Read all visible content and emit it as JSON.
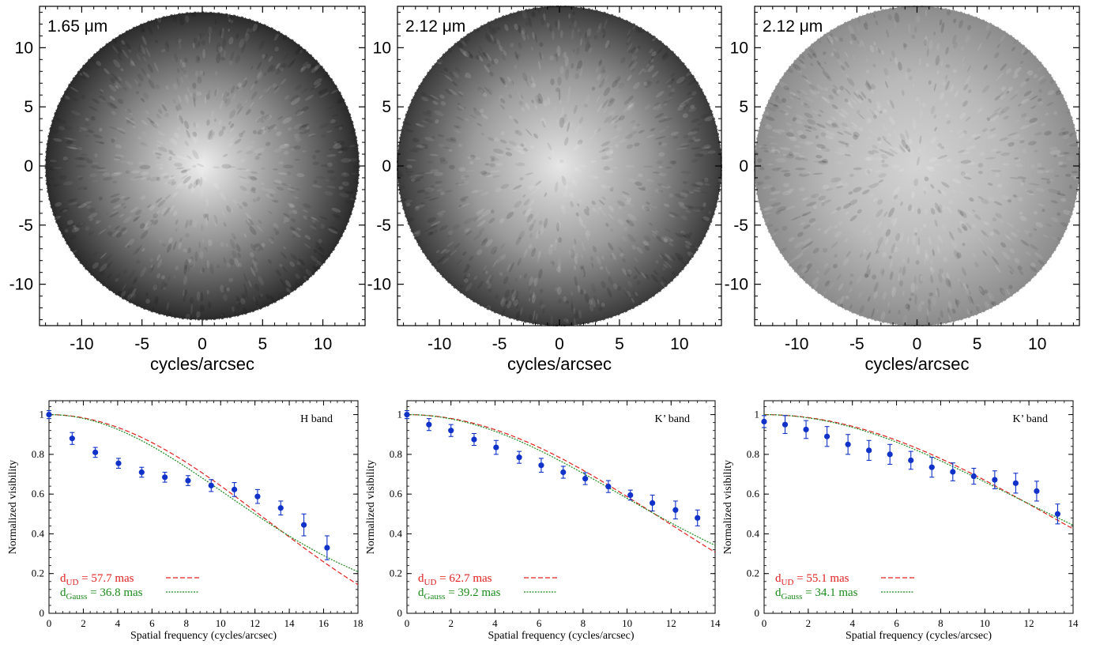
{
  "chart_data": [
    {
      "type": "heatmap",
      "panel": "top-left",
      "annotation": "1.65 μm",
      "xlabel": "cycles/arcsec",
      "ylabel": "",
      "xlim": [
        -13.5,
        13.5
      ],
      "ylim": [
        -13.5,
        13.5
      ],
      "xticks": [
        -10,
        -5,
        0,
        5,
        10
      ],
      "yticks": [
        10,
        5,
        0,
        -5,
        -10
      ],
      "colormap": "grayscale",
      "disk_radius": 13,
      "edge_shade": "#2b2b2b",
      "mid_shade": "#8a8a8a",
      "center_shade": "#eeeeee"
    },
    {
      "type": "heatmap",
      "panel": "top-middle",
      "annotation": "2.12 μm",
      "xlabel": "cycles/arcsec",
      "ylabel": "",
      "xlim": [
        -13.5,
        13.5
      ],
      "ylim": [
        -13.5,
        13.5
      ],
      "xticks": [
        -10,
        -5,
        0,
        5,
        10
      ],
      "yticks": [
        10,
        5,
        0,
        -5,
        -10
      ],
      "colormap": "grayscale",
      "disk_radius": 13.5,
      "edge_shade": "#3a3a3a",
      "mid_shade": "#9b9b9b",
      "center_shade": "#e6e6e6"
    },
    {
      "type": "heatmap",
      "panel": "top-right",
      "annotation": "2.12 μm",
      "xlabel": "cycles/arcsec",
      "ylabel": "",
      "xlim": [
        -13.5,
        13.5
      ],
      "ylim": [
        -13.5,
        13.5
      ],
      "xticks": [
        -10,
        -5,
        0,
        5,
        10
      ],
      "yticks": [
        10,
        5,
        0,
        -5,
        -10
      ],
      "colormap": "grayscale",
      "disk_radius": 13.5,
      "edge_shade": "#8c8c8c",
      "mid_shade": "#b9b9b9",
      "center_shade": "#d4d4d4"
    },
    {
      "type": "scatter",
      "panel": "bottom-left",
      "band_label": "H band",
      "xlabel": "Spatial frequency (cycles/arcsec)",
      "ylabel": "Normalized visibility",
      "xlim": [
        0,
        18
      ],
      "ylim": [
        0,
        1.07
      ],
      "xticks": [
        0,
        2,
        4,
        6,
        8,
        10,
        12,
        14,
        16,
        18
      ],
      "yticks": [
        0,
        0.2,
        0.4,
        0.6,
        0.8,
        1
      ],
      "series": [
        {
          "name": "data",
          "color": "#1032c8",
          "points": [
            {
              "x": 0,
              "y": 1.0,
              "err": 0.02
            },
            {
              "x": 1.35,
              "y": 0.88,
              "err": 0.03
            },
            {
              "x": 2.7,
              "y": 0.81,
              "err": 0.025
            },
            {
              "x": 4.05,
              "y": 0.755,
              "err": 0.025
            },
            {
              "x": 5.4,
              "y": 0.71,
              "err": 0.025
            },
            {
              "x": 6.75,
              "y": 0.685,
              "err": 0.025
            },
            {
              "x": 8.1,
              "y": 0.668,
              "err": 0.025
            },
            {
              "x": 9.45,
              "y": 0.643,
              "err": 0.03
            },
            {
              "x": 10.8,
              "y": 0.623,
              "err": 0.035
            },
            {
              "x": 12.15,
              "y": 0.588,
              "err": 0.035
            },
            {
              "x": 13.5,
              "y": 0.53,
              "err": 0.035
            },
            {
              "x": 14.85,
              "y": 0.445,
              "err": 0.055
            },
            {
              "x": 16.2,
              "y": 0.33,
              "err": 0.06
            }
          ]
        }
      ],
      "models": [
        {
          "name": "d_UD",
          "sub": "UD",
          "label_value": " = 57.7 mas",
          "kind": "uniform_disk",
          "diameter_mas": 57.7,
          "color": "#e02020",
          "dash": "dashed"
        },
        {
          "name": "d_Gauss",
          "sub": "Gauss",
          "label_value": " = 36.8 mas",
          "kind": "gaussian",
          "diameter_mas": 36.8,
          "color": "#1a8a1a",
          "dash": "dotted"
        }
      ]
    },
    {
      "type": "scatter",
      "panel": "bottom-middle",
      "band_label": "K’ band",
      "xlabel": "Spatial frequency (cycles/arcsec)",
      "ylabel": "Normalized visibility",
      "xlim": [
        0,
        14
      ],
      "ylim": [
        0,
        1.07
      ],
      "xticks": [
        0,
        2,
        4,
        6,
        8,
        10,
        12,
        14
      ],
      "yticks": [
        0,
        0.2,
        0.4,
        0.6,
        0.8,
        1
      ],
      "series": [
        {
          "name": "data",
          "color": "#1032c8",
          "points": [
            {
              "x": 0,
              "y": 1.0,
              "err": 0.02
            },
            {
              "x": 1.0,
              "y": 0.95,
              "err": 0.03
            },
            {
              "x": 2.0,
              "y": 0.92,
              "err": 0.03
            },
            {
              "x": 3.05,
              "y": 0.875,
              "err": 0.03
            },
            {
              "x": 4.05,
              "y": 0.835,
              "err": 0.035
            },
            {
              "x": 5.1,
              "y": 0.785,
              "err": 0.03
            },
            {
              "x": 6.1,
              "y": 0.745,
              "err": 0.035
            },
            {
              "x": 7.1,
              "y": 0.71,
              "err": 0.03
            },
            {
              "x": 8.1,
              "y": 0.678,
              "err": 0.03
            },
            {
              "x": 9.15,
              "y": 0.638,
              "err": 0.03
            },
            {
              "x": 10.15,
              "y": 0.595,
              "err": 0.025
            },
            {
              "x": 11.15,
              "y": 0.555,
              "err": 0.04
            },
            {
              "x": 12.2,
              "y": 0.52,
              "err": 0.045
            },
            {
              "x": 13.2,
              "y": 0.48,
              "err": 0.04
            }
          ]
        }
      ],
      "models": [
        {
          "name": "d_UD",
          "sub": "UD",
          "label_value": " = 62.7 mas",
          "kind": "uniform_disk",
          "diameter_mas": 62.7,
          "color": "#e02020",
          "dash": "dashed"
        },
        {
          "name": "d_Gauss",
          "sub": "Gauss",
          "label_value": " = 39.2 mas",
          "kind": "gaussian",
          "diameter_mas": 39.2,
          "color": "#1a8a1a",
          "dash": "dotted"
        }
      ]
    },
    {
      "type": "scatter",
      "panel": "bottom-right",
      "band_label": "K’ band",
      "xlabel": "Spatial frequency (cycles/arcsec)",
      "ylabel": "Normalized visibility",
      "xlim": [
        0,
        14
      ],
      "ylim": [
        0,
        1.07
      ],
      "xticks": [
        0,
        2,
        4,
        6,
        8,
        10,
        12,
        14
      ],
      "yticks": [
        0,
        0.2,
        0.4,
        0.6,
        0.8,
        1
      ],
      "series": [
        {
          "name": "data",
          "color": "#1032c8",
          "points": [
            {
              "x": 0,
              "y": 0.965,
              "err": 0.03
            },
            {
              "x": 0.95,
              "y": 0.95,
              "err": 0.045
            },
            {
              "x": 1.9,
              "y": 0.925,
              "err": 0.045
            },
            {
              "x": 2.85,
              "y": 0.89,
              "err": 0.05
            },
            {
              "x": 3.8,
              "y": 0.85,
              "err": 0.05
            },
            {
              "x": 4.75,
              "y": 0.82,
              "err": 0.05
            },
            {
              "x": 5.7,
              "y": 0.8,
              "err": 0.05
            },
            {
              "x": 6.65,
              "y": 0.77,
              "err": 0.045
            },
            {
              "x": 7.6,
              "y": 0.735,
              "err": 0.05
            },
            {
              "x": 8.55,
              "y": 0.712,
              "err": 0.045
            },
            {
              "x": 9.5,
              "y": 0.69,
              "err": 0.04
            },
            {
              "x": 10.45,
              "y": 0.672,
              "err": 0.045
            },
            {
              "x": 11.4,
              "y": 0.655,
              "err": 0.05
            },
            {
              "x": 12.35,
              "y": 0.615,
              "err": 0.05
            },
            {
              "x": 13.3,
              "y": 0.5,
              "err": 0.05
            }
          ]
        }
      ],
      "models": [
        {
          "name": "d_UD",
          "sub": "UD",
          "label_value": " = 55.1 mas",
          "kind": "uniform_disk",
          "diameter_mas": 55.1,
          "color": "#e02020",
          "dash": "dashed"
        },
        {
          "name": "d_Gauss",
          "sub": "Gauss",
          "label_value": " = 34.1 mas",
          "kind": "gaussian",
          "diameter_mas": 34.1,
          "color": "#1a8a1a",
          "dash": "dotted"
        }
      ]
    }
  ]
}
